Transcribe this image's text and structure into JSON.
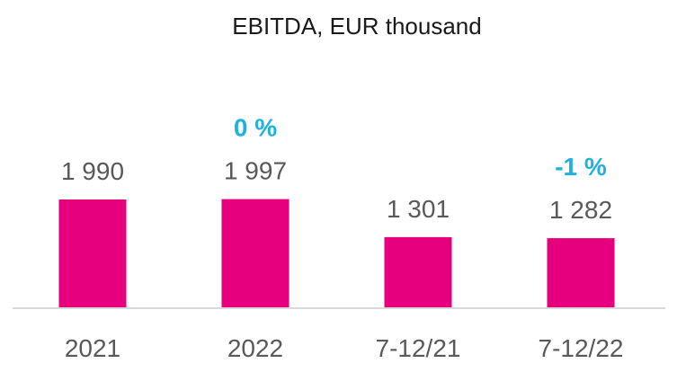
{
  "chart_data": {
    "type": "bar",
    "title": "EBITDA, EUR thousand",
    "categories": [
      "2021",
      "2022",
      "7-12/21",
      "7-12/22"
    ],
    "values": [
      1990,
      1997,
      1301,
      1282
    ],
    "value_labels": [
      "1 990",
      "1 997",
      "1 301",
      "1 282"
    ],
    "annotations": [
      {
        "category": "2022",
        "text": "0 %"
      },
      {
        "category": "7-12/22",
        "text": "-1 %"
      }
    ],
    "ylim": [
      0,
      2000
    ],
    "grid": false,
    "legend": "none",
    "colors": {
      "bar": "#e6007e",
      "annotation": "#1fb1e0",
      "axis": "#d9d9d9"
    }
  }
}
